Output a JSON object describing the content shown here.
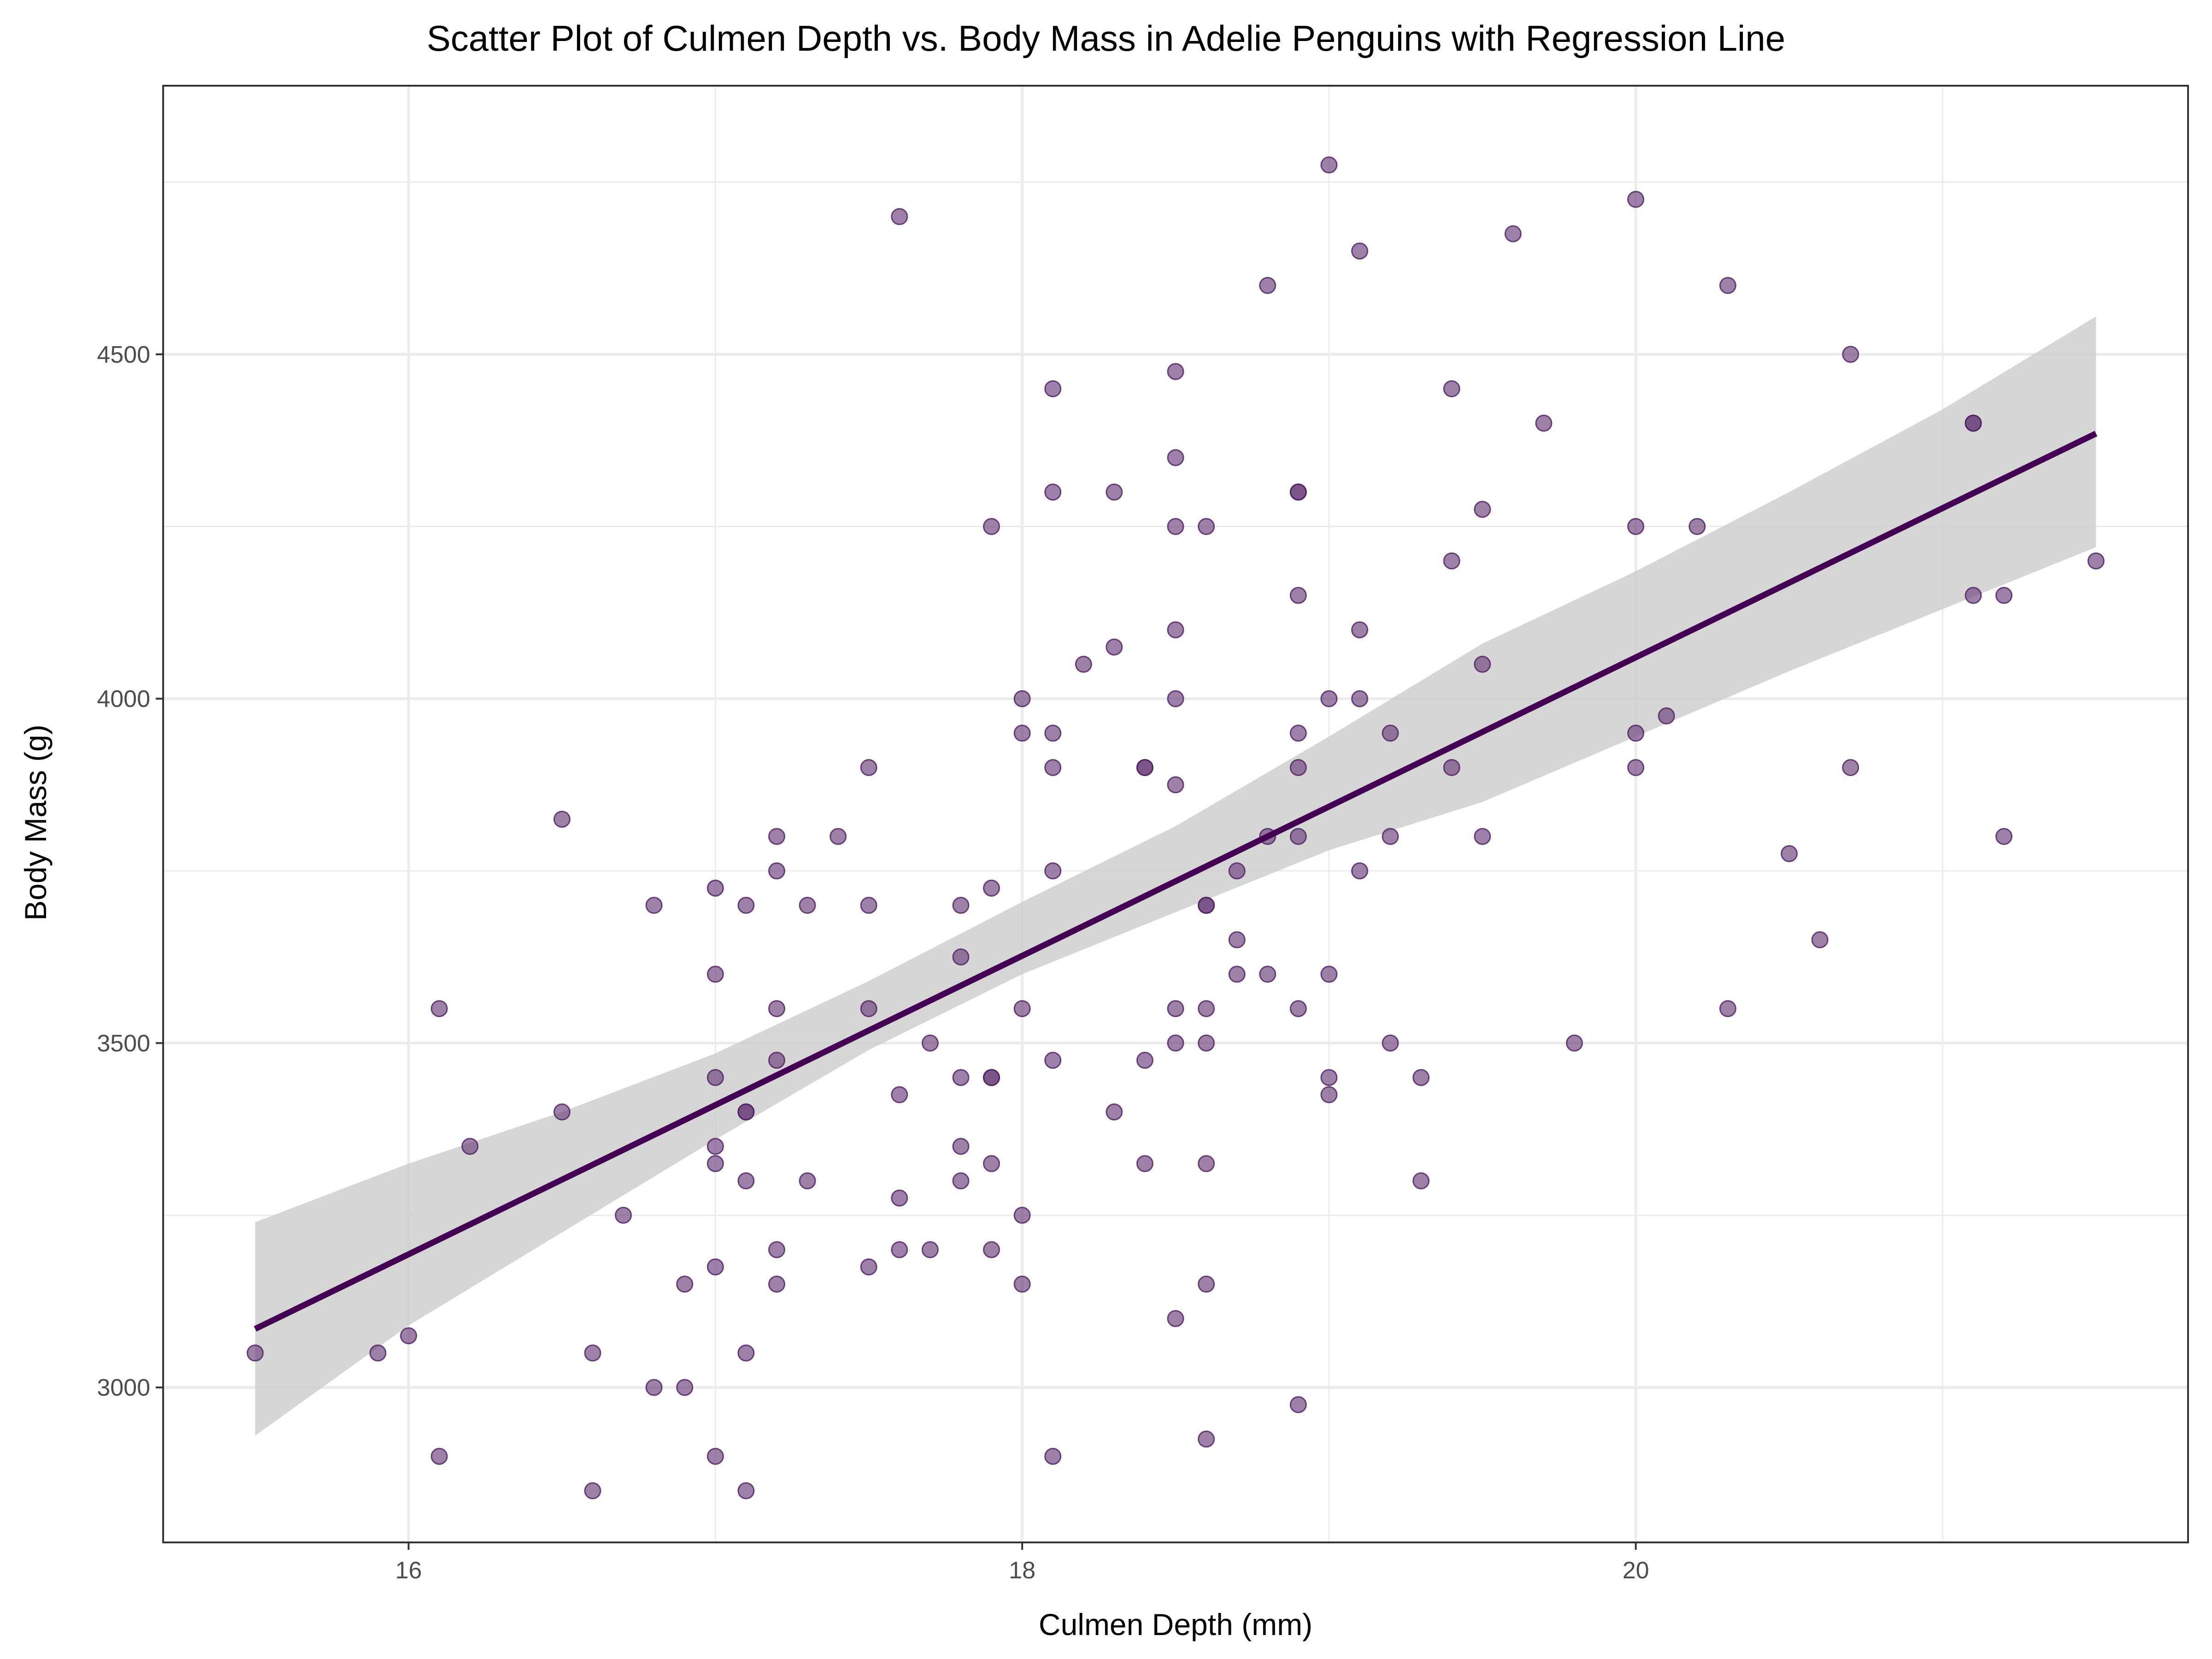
{
  "chart_data": {
    "type": "scatter",
    "title": "Scatter Plot of Culmen Depth vs. Body Mass in Adelie Penguins with Regression Line",
    "xlabel": "Culmen Depth (mm)",
    "ylabel": "Body Mass (g)",
    "xlim": [
      15.2,
      21.8
    ],
    "ylim": [
      2775,
      4890
    ],
    "xticks": [
      16,
      18,
      20
    ],
    "yticks": [
      3000,
      3500,
      4000,
      4500
    ],
    "grid": true,
    "legend": "none",
    "colors": {
      "points": "#6a3d7a",
      "line": "#440154",
      "band": "#cccccc",
      "grid": "#ebebeb"
    },
    "points": [
      [
        15.5,
        3050
      ],
      [
        15.9,
        3050
      ],
      [
        16.0,
        3075
      ],
      [
        16.1,
        3550
      ],
      [
        16.1,
        2900
      ],
      [
        16.2,
        3350
      ],
      [
        16.5,
        3825
      ],
      [
        16.5,
        3400
      ],
      [
        16.6,
        3050
      ],
      [
        16.6,
        2850
      ],
      [
        16.7,
        3250
      ],
      [
        16.8,
        3700
      ],
      [
        16.8,
        3000
      ],
      [
        16.9,
        3150
      ],
      [
        16.9,
        3000
      ],
      [
        17.0,
        3725
      ],
      [
        17.0,
        3600
      ],
      [
        17.0,
        3450
      ],
      [
        17.0,
        3350
      ],
      [
        17.0,
        3325
      ],
      [
        17.0,
        3175
      ],
      [
        17.0,
        2900
      ],
      [
        17.1,
        3700
      ],
      [
        17.1,
        3400
      ],
      [
        17.1,
        3400
      ],
      [
        17.1,
        3300
      ],
      [
        17.1,
        3050
      ],
      [
        17.1,
        2850
      ],
      [
        17.2,
        3800
      ],
      [
        17.2,
        3750
      ],
      [
        17.2,
        3550
      ],
      [
        17.2,
        3475
      ],
      [
        17.2,
        3200
      ],
      [
        17.2,
        3150
      ],
      [
        17.3,
        3700
      ],
      [
        17.3,
        3300
      ],
      [
        17.4,
        3800
      ],
      [
        17.5,
        3900
      ],
      [
        17.5,
        3700
      ],
      [
        17.5,
        3550
      ],
      [
        17.5,
        3175
      ],
      [
        17.6,
        4700
      ],
      [
        17.6,
        3425
      ],
      [
        17.6,
        3275
      ],
      [
        17.6,
        3200
      ],
      [
        17.7,
        3500
      ],
      [
        17.7,
        3200
      ],
      [
        17.8,
        3700
      ],
      [
        17.8,
        3625
      ],
      [
        17.8,
        3450
      ],
      [
        17.8,
        3350
      ],
      [
        17.8,
        3300
      ],
      [
        17.9,
        4250
      ],
      [
        17.9,
        3725
      ],
      [
        17.9,
        3450
      ],
      [
        17.9,
        3450
      ],
      [
        17.9,
        3325
      ],
      [
        17.9,
        3200
      ],
      [
        18.0,
        4000
      ],
      [
        18.0,
        3950
      ],
      [
        18.0,
        3550
      ],
      [
        18.0,
        3250
      ],
      [
        18.0,
        3150
      ],
      [
        18.1,
        4450
      ],
      [
        18.1,
        4300
      ],
      [
        18.1,
        3950
      ],
      [
        18.1,
        3900
      ],
      [
        18.1,
        3750
      ],
      [
        18.1,
        3475
      ],
      [
        18.1,
        2900
      ],
      [
        18.2,
        4050
      ],
      [
        18.3,
        4300
      ],
      [
        18.3,
        4075
      ],
      [
        18.3,
        3400
      ],
      [
        18.4,
        3900
      ],
      [
        18.4,
        3900
      ],
      [
        18.4,
        3475
      ],
      [
        18.4,
        3325
      ],
      [
        18.5,
        4475
      ],
      [
        18.5,
        4350
      ],
      [
        18.5,
        4250
      ],
      [
        18.5,
        4100
      ],
      [
        18.5,
        4000
      ],
      [
        18.5,
        3875
      ],
      [
        18.5,
        3550
      ],
      [
        18.5,
        3500
      ],
      [
        18.5,
        3100
      ],
      [
        18.6,
        4250
      ],
      [
        18.6,
        3700
      ],
      [
        18.6,
        3700
      ],
      [
        18.6,
        3550
      ],
      [
        18.6,
        3500
      ],
      [
        18.6,
        3325
      ],
      [
        18.6,
        3150
      ],
      [
        18.6,
        2925
      ],
      [
        18.7,
        3750
      ],
      [
        18.7,
        3650
      ],
      [
        18.7,
        3600
      ],
      [
        18.8,
        4600
      ],
      [
        18.8,
        3800
      ],
      [
        18.8,
        3600
      ],
      [
        18.9,
        4300
      ],
      [
        18.9,
        4300
      ],
      [
        18.9,
        4150
      ],
      [
        18.9,
        3950
      ],
      [
        18.9,
        3900
      ],
      [
        18.9,
        3800
      ],
      [
        18.9,
        3550
      ],
      [
        18.9,
        2975
      ],
      [
        19.0,
        4775
      ],
      [
        19.0,
        4000
      ],
      [
        19.0,
        3600
      ],
      [
        19.0,
        3450
      ],
      [
        19.0,
        3425
      ],
      [
        19.1,
        4650
      ],
      [
        19.1,
        4100
      ],
      [
        19.1,
        4000
      ],
      [
        19.1,
        3750
      ],
      [
        19.2,
        3950
      ],
      [
        19.2,
        3800
      ],
      [
        19.2,
        3500
      ],
      [
        19.3,
        3450
      ],
      [
        19.3,
        3300
      ],
      [
        19.4,
        4450
      ],
      [
        19.4,
        4200
      ],
      [
        19.4,
        3900
      ],
      [
        19.5,
        4275
      ],
      [
        19.5,
        4050
      ],
      [
        19.5,
        3800
      ],
      [
        19.6,
        4675
      ],
      [
        19.7,
        4400
      ],
      [
        19.8,
        3500
      ],
      [
        20.0,
        4725
      ],
      [
        20.0,
        4250
      ],
      [
        20.0,
        3950
      ],
      [
        20.0,
        3900
      ],
      [
        20.1,
        3975
      ],
      [
        20.2,
        4250
      ],
      [
        20.3,
        4600
      ],
      [
        20.3,
        3550
      ],
      [
        20.5,
        3775
      ],
      [
        20.6,
        3650
      ],
      [
        20.7,
        4500
      ],
      [
        20.7,
        3900
      ],
      [
        21.1,
        4400
      ],
      [
        21.1,
        4400
      ],
      [
        21.1,
        4150
      ],
      [
        21.2,
        4150
      ],
      [
        21.2,
        3800
      ],
      [
        21.5,
        4200
      ]
    ],
    "regression": {
      "x_range": [
        15.5,
        21.5
      ],
      "line": [
        [
          15.5,
          3085
        ],
        [
          21.5,
          4385
        ]
      ],
      "ci_band": [
        [
          15.5,
          2930,
          3240
        ],
        [
          16.0,
          3090,
          3325
        ],
        [
          16.5,
          3225,
          3400
        ],
        [
          17.0,
          3360,
          3485
        ],
        [
          17.5,
          3490,
          3590
        ],
        [
          18.0,
          3600,
          3705
        ],
        [
          18.5,
          3690,
          3815
        ],
        [
          19.0,
          3780,
          3945
        ],
        [
          19.5,
          3850,
          4080
        ],
        [
          20.0,
          3945,
          4185
        ],
        [
          20.5,
          4040,
          4300
        ],
        [
          21.0,
          4130,
          4420
        ],
        [
          21.5,
          4220,
          4555
        ]
      ]
    }
  }
}
